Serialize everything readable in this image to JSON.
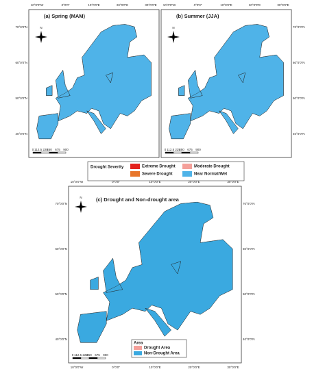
{
  "panels": [
    {
      "title": "(a) Spring (MAM)",
      "top_ticks": [
        "10°0'0\"W",
        "0°0'0\"",
        "10°0'0\"E",
        "20°0'0\"E",
        "30°0'0\"E"
      ],
      "left_ticks": [
        "70°0'0\"N",
        "60°0'0\"N",
        "50°0'0\"N",
        "40°0'0\"N"
      ],
      "scale": [
        "0",
        "112.5 225",
        "450",
        "675",
        "900"
      ]
    },
    {
      "title": "(b) Summer (JJA)",
      "top_ticks": [
        "10°0'0\"W",
        "0°0'0\"",
        "10°0'0\"E",
        "20°0'0\"E",
        "30°0'0\"E"
      ],
      "right_ticks": [
        "70°0'0\"N",
        "60°0'0\"N",
        "50°0'0\"N",
        "40°0'0\"N"
      ],
      "scale": [
        "0",
        "112.5 225",
        "450",
        "675",
        "900"
      ]
    },
    {
      "title": "(c) Drought and Non-drought area",
      "top_ticks": [
        "10°0'0\"W",
        "0°0'0\"",
        "10°0'0\"E",
        "20°0'0\"E",
        "30°0'0\"E"
      ],
      "bottom_ticks": [
        "10°0'0\"W",
        "0°0'0\"",
        "10°0'0\"E",
        "20°0'0\"E",
        "30°0'0\"E"
      ],
      "left_ticks": [
        "70°0'0\"N",
        "60°0'0\"N",
        "50°0'0\"N",
        "40°0'0\"N"
      ],
      "right_ticks": [
        "70°0'0\"N",
        "60°0'0\"N",
        "50°0'0\"N",
        "40°0'0\"N"
      ],
      "scale": [
        "0",
        "112.5 225",
        "450",
        "675",
        "900"
      ]
    }
  ],
  "north": "N",
  "severity_legend": {
    "title": "Drought Severity",
    "items": [
      "Extreme Drought",
      "Severe Drought",
      "Moderate Drought",
      "Near Normal/Wet"
    ]
  },
  "area_legend": {
    "title": "Area",
    "items": [
      "Drought Area",
      "Non-Drought Area"
    ]
  }
}
